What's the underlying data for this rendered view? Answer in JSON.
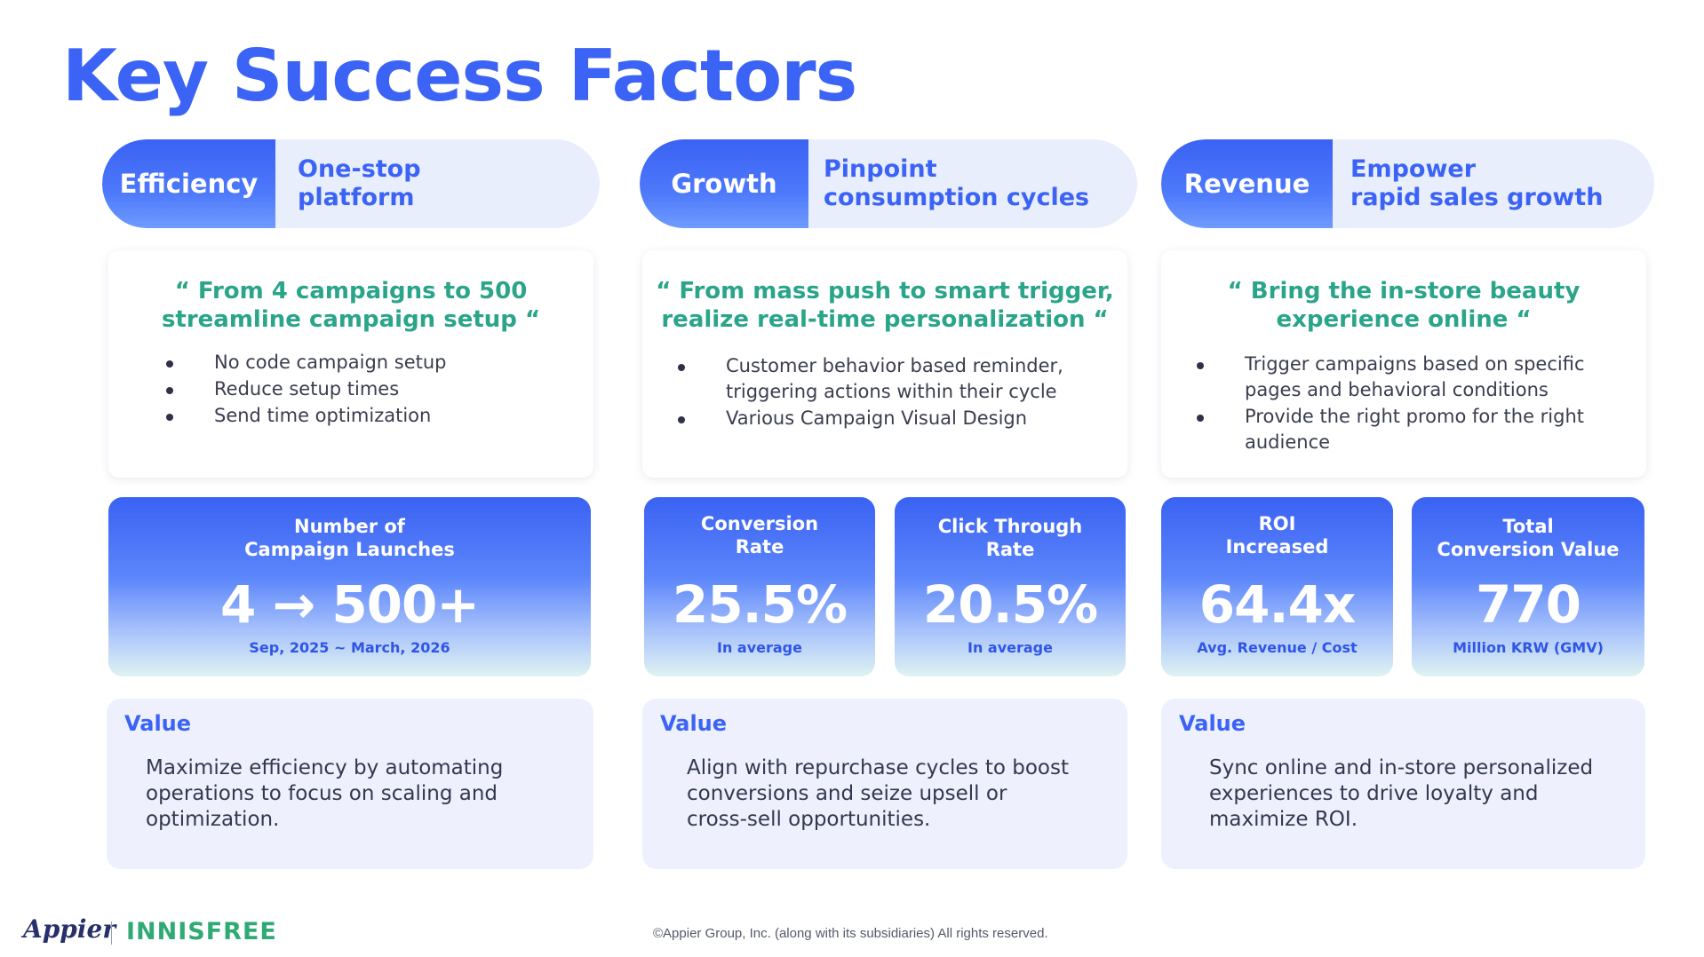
{
  "title": "Key Success Factors",
  "columns": [
    {
      "pill": {
        "label": "Efficiency",
        "lines": [
          "One-stop",
          "platform"
        ]
      },
      "quote": {
        "lines": [
          "“ From 4 campaigns to 500",
          "streamline campaign setup “"
        ]
      },
      "bullets": [
        {
          "lines": [
            "No code campaign setup"
          ]
        },
        {
          "lines": [
            "Reduce setup times"
          ]
        },
        {
          "lines": [
            "Send time optimization"
          ]
        }
      ],
      "metrics": [
        {
          "label": [
            "Number of",
            "Campaign Launches"
          ],
          "value": "4 → 500+",
          "sub": "Sep, 2025 ~ March, 2026"
        }
      ],
      "value": {
        "heading": "Value",
        "lines": [
          "Maximize efficiency by automating",
          "operations to focus on scaling and",
          "optimization."
        ]
      }
    },
    {
      "pill": {
        "label": "Growth",
        "lines": [
          "Pinpoint",
          "consumption cycles"
        ]
      },
      "quote": {
        "lines": [
          "“ From mass push to smart trigger,",
          "realize real-time personalization “"
        ]
      },
      "bullets": [
        {
          "lines": [
            "Customer behavior based reminder,",
            "triggering actions within their cycle"
          ]
        },
        {
          "lines": [
            "Various Campaign Visual Design"
          ]
        }
      ],
      "metrics": [
        {
          "label": [
            "Conversion",
            "Rate"
          ],
          "value": "25.5%",
          "sub": "In average"
        },
        {
          "label": [
            "Click Through",
            "Rate"
          ],
          "value": "20.5%",
          "sub": "In average"
        }
      ],
      "value": {
        "heading": "Value",
        "lines": [
          "Align with repurchase cycles to boost",
          "conversions and seize upsell or",
          "cross-sell opportunities."
        ]
      }
    },
    {
      "pill": {
        "label": "Revenue",
        "lines": [
          "Empower",
          "rapid sales growth"
        ]
      },
      "quote": {
        "lines": [
          "“ Bring the in-store beauty",
          "experience online “"
        ]
      },
      "bullets": [
        {
          "lines": [
            "Trigger campaigns based on specific",
            "pages and behavioral conditions"
          ]
        },
        {
          "lines": [
            "Provide the right promo for the right",
            "audience"
          ]
        }
      ],
      "metrics": [
        {
          "label": [
            "ROI",
            "Increased"
          ],
          "value": "64.4x",
          "sub": "Avg. Revenue / Cost"
        },
        {
          "label": [
            "Total",
            "Conversion Value"
          ],
          "value": "770",
          "sub": "Million KRW (GMV)"
        }
      ],
      "value": {
        "heading": "Value",
        "lines": [
          "Sync online and in-store personalized",
          "experiences to drive loyalty and",
          "maximize ROI."
        ]
      }
    }
  ],
  "footer": {
    "logo_appier": "Appier",
    "logo_innisfree": "INNISFREE",
    "copyright": "©Appier Group, Inc. (along with its subsidiaries) All rights reserved."
  }
}
